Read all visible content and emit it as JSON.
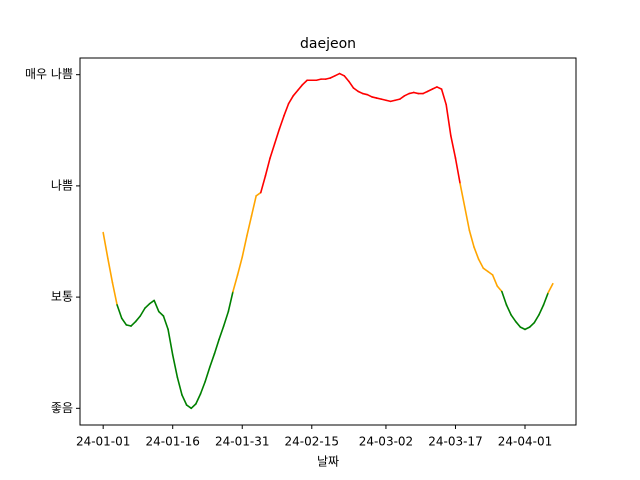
{
  "chart_data": {
    "type": "line",
    "title": "daejeon",
    "x_label": "날짜",
    "x": [
      "24-01-01",
      "24-01-02",
      "24-01-03",
      "24-01-04",
      "24-01-05",
      "24-01-06",
      "24-01-07",
      "24-01-08",
      "24-01-09",
      "24-01-10",
      "24-01-11",
      "24-01-12",
      "24-01-13",
      "24-01-14",
      "24-01-15",
      "24-01-16",
      "24-01-17",
      "24-01-18",
      "24-01-19",
      "24-01-20",
      "24-01-21",
      "24-01-22",
      "24-01-23",
      "24-01-24",
      "24-01-25",
      "24-01-26",
      "24-01-27",
      "24-01-28",
      "24-01-29",
      "24-01-30",
      "24-01-31",
      "24-02-01",
      "24-02-02",
      "24-02-03",
      "24-02-04",
      "24-02-05",
      "24-02-06",
      "24-02-07",
      "24-02-08",
      "24-02-09",
      "24-02-10",
      "24-02-11",
      "24-02-12",
      "24-02-13",
      "24-02-14",
      "24-02-15",
      "24-02-16",
      "24-02-17",
      "24-02-18",
      "24-02-19",
      "24-02-20",
      "24-02-21",
      "24-02-22",
      "24-02-23",
      "24-02-24",
      "24-02-25",
      "24-02-26",
      "24-02-27",
      "24-02-28",
      "24-02-29",
      "24-03-01",
      "24-03-02",
      "24-03-03",
      "24-03-04",
      "24-03-05",
      "24-03-06",
      "24-03-07",
      "24-03-08",
      "24-03-09",
      "24-03-10",
      "24-03-11",
      "24-03-12",
      "24-03-13",
      "24-03-14",
      "24-03-15",
      "24-03-16",
      "24-03-17",
      "24-03-18",
      "24-03-19",
      "24-03-20",
      "24-03-21",
      "24-03-22",
      "24-03-23",
      "24-03-24",
      "24-03-25",
      "24-03-26",
      "24-03-27",
      "24-03-28",
      "24-03-29",
      "24-03-30",
      "24-03-31",
      "24-04-01",
      "24-04-02",
      "24-04-03",
      "24-04-04",
      "24-04-05",
      "24-04-06",
      "24-04-07"
    ],
    "values": [
      1.58,
      1.35,
      1.13,
      0.93,
      0.81,
      0.75,
      0.74,
      0.78,
      0.83,
      0.9,
      0.94,
      0.97,
      0.87,
      0.83,
      0.71,
      0.48,
      0.28,
      0.12,
      0.03,
      0.0,
      0.04,
      0.13,
      0.24,
      0.37,
      0.49,
      0.62,
      0.74,
      0.87,
      1.05,
      1.2,
      1.36,
      1.55,
      1.73,
      1.91,
      1.94,
      2.09,
      2.25,
      2.38,
      2.51,
      2.63,
      2.74,
      2.81,
      2.86,
      2.91,
      2.95,
      2.95,
      2.95,
      2.96,
      2.96,
      2.97,
      2.99,
      3.01,
      2.99,
      2.94,
      2.88,
      2.85,
      2.83,
      2.82,
      2.8,
      2.79,
      2.78,
      2.77,
      2.76,
      2.77,
      2.78,
      2.81,
      2.83,
      2.84,
      2.83,
      2.83,
      2.85,
      2.87,
      2.89,
      2.87,
      2.73,
      2.45,
      2.25,
      2.02,
      1.81,
      1.6,
      1.45,
      1.34,
      1.26,
      1.23,
      1.2,
      1.1,
      1.05,
      0.93,
      0.84,
      0.78,
      0.73,
      0.71,
      0.73,
      0.77,
      0.84,
      0.93,
      1.04,
      1.12
    ],
    "level_colors": [
      "green",
      "orange",
      "red"
    ],
    "xlim": [
      "23-12-27",
      "24-04-12"
    ],
    "xticks": [
      "24-01-01",
      "24-01-16",
      "24-01-31",
      "24-02-15",
      "24-03-02",
      "24-03-17",
      "24-04-01"
    ],
    "ylim": [
      -0.15,
      3.15
    ],
    "yticks": [
      {
        "value": 0,
        "label": "좋음"
      },
      {
        "value": 1,
        "label": "보통"
      },
      {
        "value": 2,
        "label": "나쁨"
      },
      {
        "value": 3,
        "label": "매우 나쁨"
      }
    ]
  }
}
